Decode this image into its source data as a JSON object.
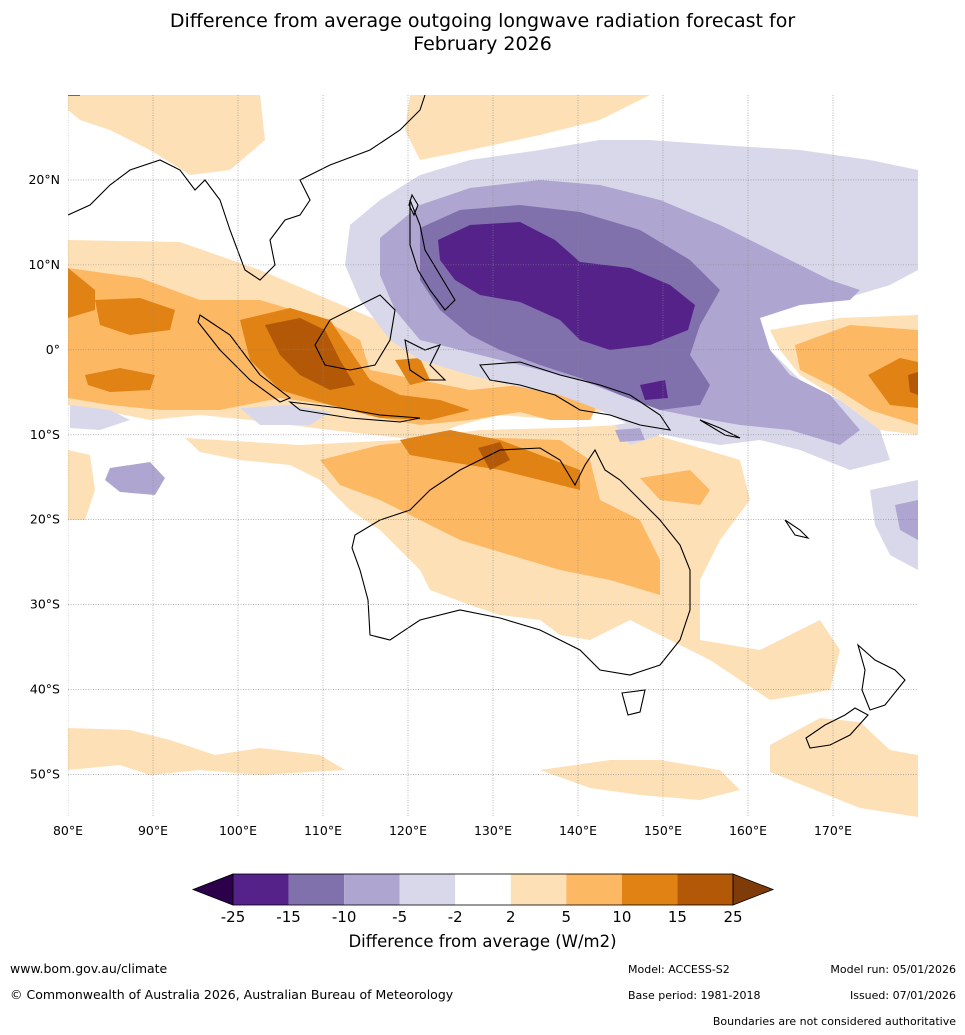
{
  "title": {
    "line1": "Difference from average outgoing longwave radiation forecast for",
    "line2": "February 2026"
  },
  "map": {
    "region": "Indo-Pacific / Australia",
    "lon_range": [
      80,
      180
    ],
    "lat_range": [
      -55,
      30
    ],
    "lat_ticks": [
      {
        "value": 20,
        "label": "20°N"
      },
      {
        "value": 10,
        "label": "10°N"
      },
      {
        "value": 0,
        "label": "0°"
      },
      {
        "value": -10,
        "label": "10°S"
      },
      {
        "value": -20,
        "label": "20°S"
      },
      {
        "value": -30,
        "label": "30°S"
      },
      {
        "value": -40,
        "label": "40°S"
      },
      {
        "value": -50,
        "label": "50°S"
      }
    ],
    "lon_ticks": [
      {
        "value": 80,
        "label": "80°E"
      },
      {
        "value": 90,
        "label": "90°E"
      },
      {
        "value": 100,
        "label": "100°E"
      },
      {
        "value": 110,
        "label": "110°E"
      },
      {
        "value": 120,
        "label": "120°E"
      },
      {
        "value": 130,
        "label": "130°E"
      },
      {
        "value": 140,
        "label": "140°E"
      },
      {
        "value": 150,
        "label": "150°E"
      },
      {
        "value": 160,
        "label": "160°E"
      },
      {
        "value": 170,
        "label": "170°E"
      }
    ],
    "features": [
      {
        "name": "strong-negative-anomaly-philippine-sea",
        "value": -17,
        "center": [
          136,
          10
        ]
      },
      {
        "name": "positive-anomaly-maritime-continent",
        "value": 14,
        "center": [
          110,
          0
        ]
      },
      {
        "name": "positive-anomaly-northern-australia",
        "value": 12,
        "center": [
          128,
          -13
        ]
      },
      {
        "name": "positive-anomaly-eastern-indian-ocean",
        "value": 11,
        "center": [
          88,
          1
        ]
      }
    ]
  },
  "colorbar": {
    "ticks": [
      "-25",
      "-15",
      "-10",
      "-5",
      "-2",
      "2",
      "5",
      "10",
      "15",
      "25"
    ],
    "colors": [
      "#552289",
      "#8070ac",
      "#aea6d0",
      "#d9d8ea",
      "#ffffff",
      "#fee0b6",
      "#fdb863",
      "#e08214",
      "#b35806"
    ],
    "under_color": "#2d004b",
    "over_color": "#7f3b08",
    "label": "Difference from average (W/m2)"
  },
  "footer": {
    "website": "www.bom.gov.au/climate",
    "copyright": "© Commonwealth of Australia 2026, Australian Bureau of Meteorology",
    "model": "Model: ACCESS-S2",
    "base_period": "Base period: 1981-2018",
    "model_run": "Model run: 05/01/2026",
    "issued": "Issued: 07/01/2026",
    "disclaimer": "Boundaries are not considered authoritative"
  }
}
